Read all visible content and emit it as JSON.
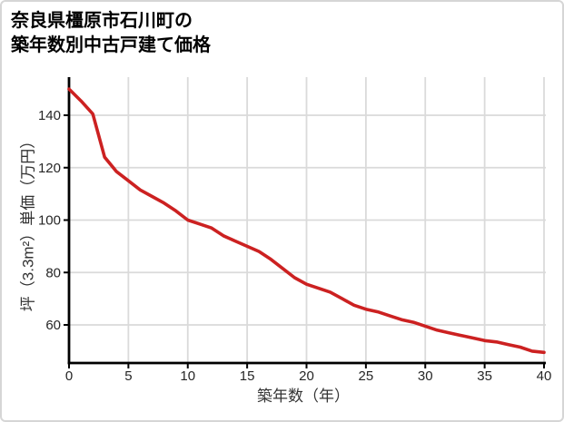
{
  "header": {
    "title_line1": "奈良県橿原市石川町の",
    "title_line2": "築年数別中古戸建て価格"
  },
  "chart_data": {
    "type": "line",
    "title": "奈良県橿原市石川町の築年数別中古戸建て価格",
    "xlabel": "築年数（年）",
    "ylabel": "坪（3.3m²）単価（万円）",
    "x": [
      0,
      1,
      2,
      3,
      4,
      5,
      6,
      7,
      8,
      9,
      10,
      11,
      12,
      13,
      14,
      15,
      16,
      17,
      18,
      19,
      20,
      21,
      22,
      23,
      24,
      25,
      26,
      27,
      28,
      29,
      30,
      31,
      32,
      33,
      34,
      35,
      36,
      37,
      38,
      39,
      40
    ],
    "values": [
      150,
      145.5,
      140.5,
      124,
      118.5,
      115,
      111.5,
      109,
      106.5,
      103.5,
      100,
      98.5,
      97,
      94,
      92,
      90,
      88,
      85,
      81.5,
      78,
      75.5,
      74,
      72.5,
      70,
      67.5,
      66,
      65,
      63.5,
      62,
      61,
      59.5,
      58,
      57,
      56,
      55,
      54,
      53.5,
      52.5,
      51.5,
      50,
      49.5
    ],
    "xticks": [
      0,
      5,
      10,
      15,
      20,
      25,
      30,
      35,
      40
    ],
    "yticks": [
      60,
      80,
      100,
      120,
      140
    ],
    "xlim": [
      0,
      40
    ],
    "ylim": [
      45.5,
      154.5
    ],
    "grid": true,
    "legend": "none",
    "line_color": "#cc2121",
    "grid_color": "#dadada",
    "axis_color": "#000000",
    "tick_label_color": "#262626"
  }
}
